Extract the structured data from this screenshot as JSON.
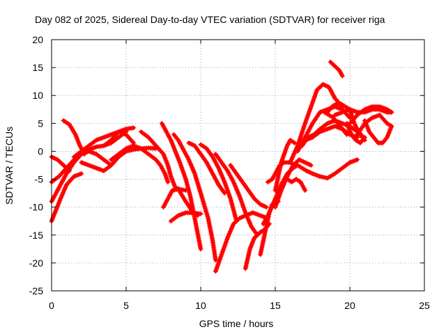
{
  "chart_data": {
    "type": "scatter",
    "title": "Day 082 of 2025, Sidereal Day-to-day VTEC variation (SDTVAR) for receiver riga",
    "xlabel": "GPS time / hours",
    "ylabel": "SDTVAR / TECUs",
    "xlim": [
      0,
      25
    ],
    "ylim": [
      -25,
      20
    ],
    "xticks": [
      0,
      5,
      10,
      15,
      20,
      25
    ],
    "yticks": [
      -25,
      -20,
      -15,
      -10,
      -5,
      0,
      5,
      10,
      15,
      20
    ],
    "grid": true,
    "marker": "plus",
    "color": "#ff0000",
    "series": [
      {
        "x": [
          0.0,
          0.3,
          0.6,
          1.0,
          1.5,
          2.0
        ],
        "y": [
          -12.5,
          -10.5,
          -8.5,
          -6.0,
          -4.5,
          -4.0
        ]
      },
      {
        "x": [
          0.0,
          0.5,
          1.0,
          1.5,
          2.0,
          2.5,
          3.0,
          3.5,
          4.0
        ],
        "y": [
          -5.5,
          -4.5,
          -3.0,
          -1.5,
          -0.5,
          0.0,
          -0.5,
          -1.5,
          -2.5
        ]
      },
      {
        "x": [
          0.0,
          0.4,
          0.8,
          1.2
        ],
        "y": [
          -1.0,
          -1.5,
          -2.5,
          -3.5
        ]
      },
      {
        "x": [
          0.8,
          1.2,
          1.6,
          1.9,
          2.2
        ],
        "y": [
          5.5,
          4.8,
          3.0,
          1.0,
          -0.5
        ]
      },
      {
        "x": [
          0.0,
          0.5,
          1.0,
          1.5,
          2.0,
          2.5,
          3.0,
          3.5,
          4.0,
          4.5,
          5.0
        ],
        "y": [
          -9.0,
          -6.5,
          -4.0,
          -2.0,
          -0.5,
          0.3,
          0.8,
          1.0,
          1.5,
          2.5,
          3.5
        ]
      },
      {
        "x": [
          1.5,
          2.0,
          2.5,
          3.0,
          3.5,
          4.0,
          4.5,
          5.0,
          5.5
        ],
        "y": [
          -1.0,
          0.0,
          1.0,
          2.0,
          2.5,
          3.0,
          3.5,
          4.0,
          4.2
        ]
      },
      {
        "x": [
          2.0,
          2.5,
          3.0,
          3.5,
          4.0,
          4.5,
          5.0,
          5.5,
          6.0,
          6.5,
          7.0
        ],
        "y": [
          -2.0,
          -2.5,
          -3.0,
          -3.5,
          -2.5,
          -1.0,
          0.0,
          0.3,
          0.5,
          0.6,
          0.5
        ]
      },
      {
        "x": [
          4.0,
          4.5,
          5.0,
          5.5,
          6.0,
          6.5,
          7.0,
          7.3,
          7.6,
          7.8
        ],
        "y": [
          -1.5,
          -0.5,
          0.5,
          1.0,
          0.5,
          -0.5,
          -1.5,
          -2.5,
          -4.0,
          -5.5
        ]
      },
      {
        "x": [
          3.5,
          4.0,
          4.5,
          5.0,
          5.5
        ],
        "y": [
          1.0,
          2.0,
          3.5,
          3.0,
          1.5
        ]
      },
      {
        "x": [
          6.0,
          6.5,
          7.0,
          7.5,
          7.8,
          8.0,
          8.3,
          8.6,
          9.0
        ],
        "y": [
          3.5,
          2.5,
          1.0,
          -0.5,
          -2.5,
          -4.5,
          -6.5,
          -6.8,
          -7.0
        ]
      },
      {
        "x": [
          7.4,
          7.7,
          8.0,
          8.3,
          8.6,
          9.0,
          9.3,
          9.6,
          10.0
        ],
        "y": [
          5.0,
          3.5,
          2.0,
          0.0,
          -2.0,
          -5.0,
          -8.0,
          -12.0,
          -17.5
        ]
      },
      {
        "x": [
          7.5,
          7.8,
          8.1,
          8.5,
          9.0,
          9.5,
          10.0
        ],
        "y": [
          -10.0,
          -8.5,
          -7.0,
          -6.8,
          -9.0,
          -11.0,
          -11.2
        ]
      },
      {
        "x": [
          8.0,
          8.5,
          9.0,
          9.5,
          9.8
        ],
        "y": [
          -12.5,
          -11.5,
          -11.0,
          -11.0,
          -11.5
        ]
      },
      {
        "x": [
          8.2,
          8.5,
          8.8,
          9.2,
          9.6,
          10.0,
          10.5,
          10.8,
          11.0
        ],
        "y": [
          3.0,
          2.0,
          0.5,
          -1.5,
          -4.0,
          -7.5,
          -12.0,
          -16.0,
          -19.5
        ]
      },
      {
        "x": [
          9.2,
          9.6,
          10.0,
          10.4,
          10.8,
          11.2,
          11.6
        ],
        "y": [
          1.5,
          1.0,
          -0.5,
          -2.0,
          -4.0,
          -6.0,
          -7.5
        ]
      },
      {
        "x": [
          10.0,
          10.4,
          10.8,
          11.2,
          11.6,
          12.0,
          12.4
        ],
        "y": [
          1.2,
          0.5,
          -1.0,
          -3.0,
          -5.5,
          -8.5,
          -12.5
        ]
      },
      {
        "x": [
          11.0,
          11.4,
          11.8,
          12.2,
          12.6,
          13.0,
          13.4,
          13.8
        ],
        "y": [
          -0.5,
          -2.0,
          -3.5,
          -5.5,
          -8.0,
          -11.0,
          -13.5,
          -15.0
        ]
      },
      {
        "x": [
          11.0,
          11.4,
          11.8,
          12.2,
          12.6,
          13.0,
          13.5,
          14.0,
          14.5
        ],
        "y": [
          -21.5,
          -18.5,
          -15.5,
          -13.0,
          -12.0,
          -11.5,
          -11.0,
          -11.5,
          -12.0
        ]
      },
      {
        "x": [
          12.0,
          12.4,
          12.8,
          13.2,
          13.6,
          14.0,
          14.4
        ],
        "y": [
          -2.5,
          -4.0,
          -5.5,
          -7.0,
          -8.5,
          -9.5,
          -10.0
        ]
      },
      {
        "x": [
          13.0,
          13.3,
          13.6,
          14.0,
          14.3,
          14.6
        ],
        "y": [
          -21.0,
          -17.5,
          -15.5,
          -14.5,
          -14.0,
          -13.0
        ]
      },
      {
        "x": [
          14.0,
          14.2,
          14.4,
          14.6,
          14.8,
          15.0,
          15.2
        ],
        "y": [
          -18.5,
          -16.0,
          -13.5,
          -11.0,
          -9.5,
          -9.0,
          -9.0
        ]
      },
      {
        "x": [
          14.5,
          14.8,
          15.0,
          15.3,
          15.6,
          16.0,
          16.3
        ],
        "y": [
          -5.5,
          -5.0,
          -4.0,
          -2.5,
          -2.0,
          -2.0,
          -2.5
        ]
      },
      {
        "x": [
          14.2,
          14.6,
          15.0,
          15.4,
          15.8,
          16.2,
          16.5
        ],
        "y": [
          -13.0,
          -11.0,
          -8.5,
          -6.0,
          -4.0,
          -3.0,
          -2.5
        ]
      },
      {
        "x": [
          15.0,
          15.4,
          15.8,
          16.2,
          16.6,
          17.0,
          17.4
        ],
        "y": [
          -10.0,
          -7.0,
          -4.5,
          -2.5,
          -1.5,
          -2.0,
          -2.5
        ]
      },
      {
        "x": [
          15.0,
          15.4,
          15.8,
          16.0,
          16.3
        ],
        "y": [
          -7.0,
          -2.0,
          1.0,
          2.0,
          1.5
        ]
      },
      {
        "x": [
          15.5,
          15.8,
          16.1,
          16.4,
          16.7,
          17.0
        ],
        "y": [
          -5.5,
          -5.0,
          -5.5,
          -5.0,
          -5.5,
          -7.0
        ]
      },
      {
        "x": [
          16.5,
          16.8,
          17.1,
          17.5,
          18.0,
          18.5,
          19.0,
          19.5,
          20.0,
          20.5
        ],
        "y": [
          -2.5,
          -3.0,
          -3.5,
          -4.0,
          -4.5,
          -4.8,
          -4.0,
          -3.0,
          -2.0,
          -1.5
        ]
      },
      {
        "x": [
          16.0,
          16.5,
          17.0,
          17.4,
          17.8,
          18.2,
          18.6,
          19.0,
          19.5
        ],
        "y": [
          -2.0,
          1.0,
          5.0,
          8.0,
          11.0,
          12.0,
          11.5,
          9.5,
          8.0
        ]
      },
      {
        "x": [
          16.5,
          17.0,
          17.5,
          18.0,
          18.5,
          19.0,
          19.5,
          20.0
        ],
        "y": [
          0.0,
          2.5,
          5.0,
          7.0,
          7.5,
          8.0,
          7.5,
          6.0
        ]
      },
      {
        "x": [
          16.8,
          17.2,
          17.6,
          18.0,
          18.5,
          19.0,
          19.5,
          20.0,
          20.5,
          21.0
        ],
        "y": [
          1.0,
          2.5,
          3.0,
          4.0,
          5.0,
          5.5,
          5.0,
          4.5,
          3.5,
          2.0
        ]
      },
      {
        "x": [
          17.0,
          17.5,
          18.0,
          18.5,
          19.0,
          19.5,
          20.0,
          20.5
        ],
        "y": [
          2.0,
          2.5,
          3.5,
          4.0,
          4.5,
          4.0,
          3.0,
          2.5
        ]
      },
      {
        "x": [
          18.3,
          18.6,
          18.9,
          19.2,
          19.5,
          19.8
        ],
        "y": [
          7.0,
          6.5,
          6.0,
          5.0,
          4.0,
          3.0
        ]
      },
      {
        "x": [
          18.5,
          18.8,
          19.1,
          19.4,
          19.7,
          20.0,
          20.3,
          20.6,
          20.9
        ],
        "y": [
          7.0,
          8.0,
          8.5,
          8.5,
          8.0,
          7.5,
          5.0,
          3.5,
          2.5
        ]
      },
      {
        "x": [
          18.7,
          18.9,
          19.1,
          19.3,
          19.5
        ],
        "y": [
          16.0,
          15.5,
          15.0,
          14.5,
          13.5
        ]
      },
      {
        "x": [
          19.0,
          19.5,
          20.0,
          20.5,
          21.0,
          21.5,
          22.0,
          22.5,
          22.8
        ],
        "y": [
          6.5,
          7.0,
          7.5,
          7.0,
          7.0,
          7.5,
          7.5,
          7.0,
          7.0
        ]
      },
      {
        "x": [
          20.0,
          20.5,
          21.0,
          21.5,
          22.0,
          22.5,
          22.8
        ],
        "y": [
          5.0,
          6.5,
          7.5,
          8.0,
          8.0,
          7.5,
          7.0
        ]
      },
      {
        "x": [
          20.5,
          21.0,
          21.5,
          22.0,
          22.5,
          22.8
        ],
        "y": [
          3.0,
          5.0,
          6.0,
          6.5,
          5.0,
          4.5
        ]
      },
      {
        "x": [
          21.0,
          21.3,
          21.6,
          21.9,
          22.2,
          22.5,
          22.8
        ],
        "y": [
          5.5,
          3.5,
          2.5,
          1.5,
          1.5,
          2.5,
          4.5
        ]
      },
      {
        "x": [
          19.8,
          20.1,
          20.4,
          20.7,
          21.0
        ],
        "y": [
          5.0,
          3.0,
          2.0,
          1.5,
          2.5
        ]
      }
    ]
  }
}
